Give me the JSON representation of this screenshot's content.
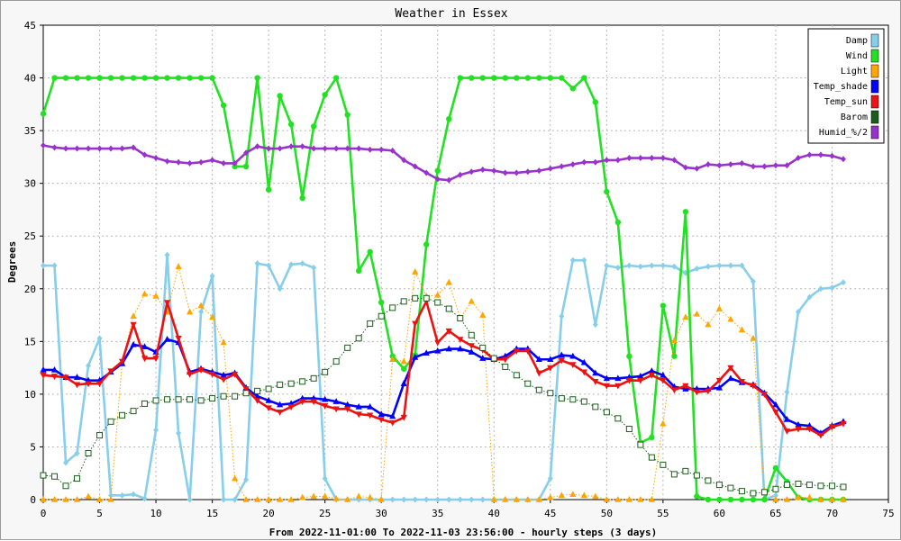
{
  "chart_data": {
    "type": "line",
    "title": "Weather in Essex",
    "xlabel": "From 2022-11-01:00 To 2022-11-03 23:56:00 - hourly steps (3 days)",
    "ylabel": "Degrees",
    "xlim": [
      0,
      75
    ],
    "ylim": [
      0,
      45
    ],
    "x_ticks": [
      0,
      5,
      10,
      15,
      20,
      25,
      30,
      35,
      40,
      45,
      50,
      55,
      60,
      65,
      70,
      75
    ],
    "y_ticks": [
      0,
      5,
      10,
      15,
      20,
      25,
      30,
      35,
      40,
      45
    ],
    "grid": true,
    "legend": "top-right",
    "x": [
      0,
      1,
      2,
      3,
      4,
      5,
      6,
      7,
      8,
      9,
      10,
      11,
      12,
      13,
      14,
      15,
      16,
      17,
      18,
      19,
      20,
      21,
      22,
      23,
      24,
      25,
      26,
      27,
      28,
      29,
      30,
      31,
      32,
      33,
      34,
      35,
      36,
      37,
      38,
      39,
      40,
      41,
      42,
      43,
      44,
      45,
      46,
      47,
      48,
      49,
      50,
      51,
      52,
      53,
      54,
      55,
      56,
      57,
      58,
      59,
      60,
      61,
      62,
      63,
      64,
      65,
      66,
      67,
      68,
      69,
      70,
      71
    ],
    "series": [
      {
        "name": "Damp",
        "color": "#87ceeb",
        "style": "solid",
        "marker": "diamond",
        "values": [
          22.2,
          22.2,
          3.5,
          4.4,
          12.7,
          15.3,
          0.4,
          0.4,
          0.5,
          0.1,
          6.6,
          23.2,
          6.3,
          0,
          17.8,
          21.2,
          0,
          0,
          1.9,
          22.4,
          22.2,
          20,
          22.3,
          22.4,
          22,
          2,
          0,
          0,
          0,
          0,
          0,
          0,
          0,
          0,
          0,
          0,
          0,
          0,
          0,
          0,
          0,
          0,
          0,
          0,
          0,
          2,
          17.4,
          22.7,
          22.7,
          16.6,
          22.2,
          22,
          22.2,
          22.1,
          22.2,
          22.2,
          22.1,
          21.5,
          21.9,
          22.1,
          22.2,
          22.2,
          22.2,
          20.7,
          0,
          0.4,
          10.2,
          17.8,
          19.2,
          20,
          20.1,
          20.6
        ]
      },
      {
        "name": "Wind",
        "color": "#22e022",
        "style": "solid",
        "marker": "circle",
        "values": [
          36.6,
          40,
          40,
          40,
          40,
          40,
          40,
          40,
          40,
          40,
          40,
          40,
          40,
          40,
          40,
          40,
          37.4,
          31.6,
          31.6,
          40,
          29.4,
          38.3,
          35.6,
          28.6,
          35.4,
          38.4,
          40,
          36.5,
          21.7,
          23.5,
          18.7,
          13.6,
          12.4,
          13.7,
          24.2,
          31.2,
          36.1,
          40,
          40,
          40,
          40,
          40,
          40,
          40,
          40,
          40,
          40,
          39,
          40,
          37.7,
          29.2,
          26.3,
          13.6,
          5.4,
          5.9,
          18.4,
          13.6,
          27.3,
          0.3,
          0,
          0,
          0,
          0,
          0,
          0,
          3,
          1.7,
          0.2,
          0,
          0,
          0,
          0
        ]
      },
      {
        "name": "Light",
        "color": "#ffa500",
        "style": "dotted",
        "marker": "triangle-up",
        "values": [
          0,
          0,
          0,
          0,
          0.3,
          0,
          0,
          13,
          17.4,
          19.5,
          19.3,
          17.8,
          22.1,
          17.8,
          18.4,
          17.3,
          14.9,
          2,
          0,
          0,
          0,
          0,
          0,
          0.2,
          0.3,
          0.3,
          0.1,
          0,
          0.3,
          0.2,
          0,
          13.3,
          13.1,
          21.6,
          19.3,
          19.4,
          20.6,
          17.2,
          18.8,
          17.5,
          0,
          0,
          0,
          0,
          0,
          0.2,
          0.4,
          0.5,
          0.4,
          0.3,
          0,
          0,
          0,
          0,
          0,
          7.2,
          15.1,
          17.3,
          17.6,
          16.6,
          18.1,
          17.1,
          16.1,
          15.3,
          0.8,
          0,
          0,
          0.2,
          0.2,
          0,
          0,
          0
        ]
      },
      {
        "name": "Temp_shade",
        "color": "#0000ff",
        "style": "solid",
        "marker": "triangle-up",
        "values": [
          12.3,
          12.3,
          11.6,
          11.6,
          11.3,
          11.3,
          12.1,
          12.9,
          14.7,
          14.5,
          14,
          15.2,
          14.9,
          12.1,
          12.4,
          12.1,
          11.8,
          12,
          10.6,
          9.8,
          9.4,
          9,
          9.1,
          9.6,
          9.6,
          9.5,
          9.3,
          9,
          8.8,
          8.8,
          8.1,
          7.9,
          11,
          13.5,
          13.9,
          14.1,
          14.3,
          14.3,
          14,
          13.4,
          13.3,
          13.6,
          14.3,
          14.3,
          13.3,
          13.3,
          13.7,
          13.6,
          13,
          12,
          11.5,
          11.5,
          11.6,
          11.7,
          12.2,
          11.8,
          10.7,
          10.5,
          10.5,
          10.5,
          10.6,
          11.5,
          11.1,
          10.9,
          10.1,
          9,
          7.6,
          7.1,
          7,
          6.3,
          7,
          7.4
        ]
      },
      {
        "name": "Temp_sun",
        "color": "#ee1111",
        "style": "solid",
        "marker": "triangle-down",
        "values": [
          11.8,
          11.7,
          11.6,
          10.9,
          11,
          11,
          12.2,
          13.1,
          16.6,
          13.4,
          13.4,
          18.7,
          15.3,
          11.9,
          12.3,
          11.9,
          11.4,
          11.9,
          10.5,
          9.4,
          8.7,
          8.3,
          8.8,
          9.3,
          9.3,
          8.9,
          8.6,
          8.6,
          8.1,
          8,
          7.6,
          7.3,
          7.8,
          16.7,
          18.8,
          14.9,
          16,
          15.2,
          14.6,
          14.2,
          13.3,
          13.3,
          14.1,
          14.1,
          12,
          12.5,
          13.2,
          12.8,
          12.1,
          11.2,
          10.8,
          10.8,
          11.3,
          11.3,
          11.8,
          11.3,
          10.4,
          10.8,
          10.2,
          10.3,
          11.3,
          12.5,
          11.2,
          10.8,
          10,
          8.3,
          6.5,
          6.7,
          6.7,
          6.1,
          6.9,
          7.2
        ]
      },
      {
        "name": "Barom",
        "color": "#1a5e1a",
        "style": "dotted",
        "marker": "square",
        "values": [
          2.3,
          2.2,
          1.3,
          2,
          4.4,
          6.1,
          7.4,
          8,
          8.4,
          9.1,
          9.4,
          9.5,
          9.5,
          9.5,
          9.4,
          9.6,
          9.8,
          9.8,
          10.1,
          10.3,
          10.5,
          10.9,
          11,
          11.2,
          11.5,
          12.1,
          13.1,
          14.4,
          15.3,
          16.7,
          17.4,
          18.2,
          18.8,
          19.1,
          19.1,
          18.7,
          18.1,
          17.2,
          15.6,
          14.4,
          13.4,
          12.6,
          11.8,
          11,
          10.4,
          10.1,
          9.6,
          9.5,
          9.3,
          8.8,
          8.3,
          7.7,
          6.7,
          5.2,
          4,
          3.3,
          2.4,
          2.7,
          2.3,
          1.8,
          1.4,
          1.1,
          0.8,
          0.6,
          0.7,
          1,
          1.4,
          1.5,
          1.4,
          1.3,
          1.3,
          1.2
        ]
      },
      {
        "name": "Humid_%/2",
        "color": "#9932cc",
        "style": "solid",
        "marker": "diamond",
        "values": [
          33.6,
          33.4,
          33.3,
          33.3,
          33.3,
          33.3,
          33.3,
          33.3,
          33.4,
          32.7,
          32.4,
          32.1,
          32,
          31.9,
          32,
          32.2,
          31.9,
          31.9,
          32.9,
          33.5,
          33.3,
          33.3,
          33.5,
          33.5,
          33.3,
          33.3,
          33.3,
          33.3,
          33.3,
          33.2,
          33.2,
          33.1,
          32.2,
          31.6,
          31,
          30.4,
          30.3,
          30.8,
          31.1,
          31.3,
          31.2,
          31,
          31,
          31.1,
          31.2,
          31.4,
          31.6,
          31.8,
          32,
          32,
          32.2,
          32.2,
          32.4,
          32.4,
          32.4,
          32.4,
          32.2,
          31.5,
          31.4,
          31.8,
          31.7,
          31.8,
          31.9,
          31.6,
          31.6,
          31.7,
          31.7,
          32.4,
          32.7,
          32.7,
          32.6,
          32.3
        ]
      }
    ]
  }
}
